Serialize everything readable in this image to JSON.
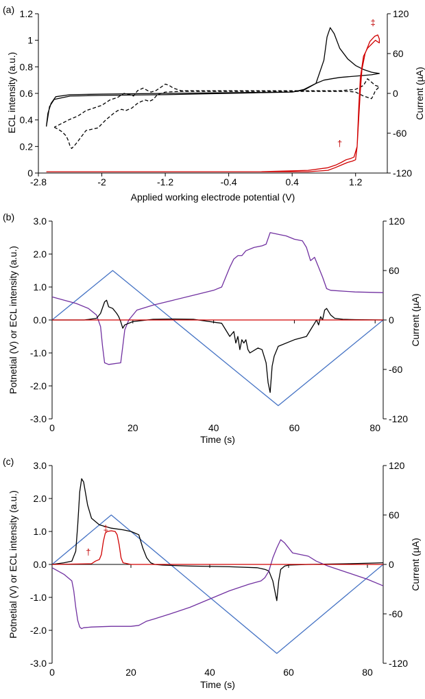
{
  "chart_data": [
    {
      "type": "line",
      "panel_label": "(a)",
      "xlabel": "Applied working electrode potential (V)",
      "ylabel": "ECL intensity (a.u.)",
      "y2label": "Current (µA)",
      "xlim": [
        -2.8,
        1.6
      ],
      "ylim": [
        0,
        1.2
      ],
      "y2lim": [
        -120,
        120
      ],
      "xticks": [
        -2.8,
        -2.0,
        -1.2,
        -0.4,
        0.4,
        1.2
      ],
      "xtick_labels": [
        "-2.8",
        "-2",
        "-1.2",
        "-0.4",
        "0.4",
        "1.2"
      ],
      "yticks": [
        0,
        0.2,
        0.4,
        0.6,
        0.8,
        1.0,
        1.2
      ],
      "ytick_labels": [
        "0",
        "0.2",
        "0.4",
        "0.6",
        "0.8",
        "1",
        "1.2"
      ],
      "y2ticks": [
        -120,
        -60,
        0,
        60,
        120
      ],
      "y2tick_labels": [
        "-120",
        "-60",
        "0",
        "60",
        "120"
      ],
      "annotations": [
        {
          "text": "†",
          "x": 1.0,
          "y": 0.2,
          "color": "#c00000"
        },
        {
          "text": "‡",
          "x": 1.42,
          "y": 1.11,
          "color": "#c00000"
        }
      ],
      "series": [
        {
          "axis": "y2",
          "color": "#000000",
          "dash": "solid",
          "x": [
            -2.7,
            -2.68,
            -2.64,
            -2.58,
            -2.4,
            -2.0,
            -1.2,
            -0.4,
            0.4,
            0.55,
            0.7,
            0.8,
            0.84,
            0.88,
            0.93,
            1.0,
            1.1,
            1.2,
            1.3,
            1.4,
            1.5,
            1.5,
            1.4,
            1.3,
            1.2,
            1.1,
            1.0,
            0.9,
            0.8,
            0.7,
            0.55,
            0.4,
            -0.4,
            -1.2,
            -2.0,
            -2.4,
            -2.6,
            -2.66,
            -2.7
          ],
          "y": [
            -50,
            -30,
            -15,
            -5,
            -2,
            -1,
            0,
            1,
            2,
            5,
            15,
            50,
            85,
            99,
            90,
            68,
            52,
            42,
            36,
            32,
            30,
            30,
            28,
            27,
            26,
            25,
            24,
            22,
            20,
            15,
            6,
            2,
            0,
            -2,
            -3,
            -4,
            -9,
            -20,
            -50
          ]
        },
        {
          "axis": "y2",
          "color": "#000000",
          "dash": "dashed",
          "x": [
            -2.6,
            -2.55,
            -2.5,
            -2.45,
            -2.42,
            -2.4,
            -2.38,
            -2.34,
            -2.3,
            -2.2,
            -2.05,
            -1.95,
            -1.85,
            -1.8,
            -1.75,
            -1.7,
            -1.62,
            -1.55,
            -1.5,
            -1.45,
            -1.4,
            -1.35,
            -1.3,
            -1.2,
            -1.0,
            -0.5,
            0.0,
            0.5,
            1.0,
            1.1,
            1.2,
            1.25,
            1.3,
            1.35,
            1.4,
            1.42,
            1.45,
            1.5,
            1.5,
            1.45,
            1.4,
            1.35,
            1.3,
            1.2,
            1.0,
            0.5,
            0.0,
            -0.5,
            -1.0,
            -1.1,
            -1.15,
            -1.2,
            -1.27,
            -1.32,
            -1.38,
            -1.42,
            -1.48,
            -1.55,
            -1.6,
            -1.65,
            -1.72,
            -1.8,
            -1.9,
            -2.0,
            -2.05,
            -2.1,
            -2.2,
            -2.3,
            -2.38,
            -2.42,
            -2.45,
            -2.5,
            -2.55,
            -2.6
          ],
          "y": [
            -51,
            -54,
            -58,
            -64,
            -72,
            -80,
            -83,
            -78,
            -72,
            -56,
            -52,
            -40,
            -30,
            -26,
            -24,
            -26,
            -22,
            -15,
            -12,
            -10,
            -12,
            -9,
            -2,
            2,
            3,
            3,
            3,
            3,
            3,
            3,
            2,
            -1,
            -4,
            -6,
            -8,
            -4,
            4,
            10,
            10,
            12,
            17,
            22,
            12,
            6,
            4,
            4,
            4,
            4,
            4,
            8,
            12,
            14,
            8,
            4,
            2,
            4,
            8,
            4,
            -4,
            -2,
            0,
            -6,
            -10,
            -18,
            -20,
            -22,
            -26,
            -34,
            -38,
            -40,
            -42,
            -45,
            -48,
            -51
          ]
        },
        {
          "axis": "y",
          "color": "#d00000",
          "dash": "solid",
          "x": [
            -2.7,
            -1.0,
            0.0,
            0.6,
            0.85,
            0.95,
            1.02,
            1.08,
            1.14,
            1.18,
            1.22,
            1.24,
            1.26,
            1.28,
            1.32,
            1.38,
            1.44,
            1.48,
            1.5,
            1.5,
            1.45,
            1.4,
            1.35,
            1.3,
            1.26,
            1.24,
            1.22,
            1.2,
            1.16,
            1.1,
            1.02,
            0.94,
            0.85,
            0.6,
            0.0
          ],
          "y": [
            0.01,
            0.01,
            0.01,
            0.02,
            0.04,
            0.06,
            0.08,
            0.1,
            0.11,
            0.12,
            0.2,
            0.42,
            0.62,
            0.78,
            0.9,
            0.99,
            1.03,
            1.04,
            1.01,
            0.98,
            1.0,
            0.97,
            0.94,
            0.88,
            0.72,
            0.5,
            0.2,
            0.1,
            0.09,
            0.08,
            0.06,
            0.04,
            0.02,
            0.01,
            0.01
          ]
        }
      ]
    },
    {
      "type": "line",
      "panel_label": "(b)",
      "xlabel": "Time (s)",
      "ylabel": "Potnetial (V) or ECL intensity (a.u.)",
      "y2label": "Current (µA)",
      "xlim": [
        0,
        82
      ],
      "ylim": [
        -3,
        3
      ],
      "y2lim": [
        -120,
        120
      ],
      "xticks": [
        0,
        20,
        40,
        60,
        80
      ],
      "xtick_labels": [
        "0",
        "20",
        "40",
        "60",
        "80"
      ],
      "yticks": [
        -3,
        -2,
        -1,
        0,
        1,
        2,
        3
      ],
      "ytick_labels": [
        "-3.0",
        "-2.0",
        "-1.0",
        "0.0",
        "1.0",
        "2.0",
        "3.0"
      ],
      "y2ticks": [
        -120,
        -60,
        0,
        60,
        120
      ],
      "y2tick_labels": [
        "-120",
        "-60",
        "0",
        "60",
        "120"
      ],
      "annotations": [],
      "series": [
        {
          "axis": "y",
          "color": "#4472c4",
          "dash": "solid",
          "x": [
            0,
            15,
            56,
            82
          ],
          "y": [
            0,
            1.5,
            -2.6,
            0
          ]
        },
        {
          "axis": "y",
          "color": "#7030a0",
          "dash": "solid",
          "x": [
            0,
            3,
            6,
            9,
            11,
            12,
            12.5,
            13,
            14,
            17,
            17.5,
            18,
            19,
            21,
            25,
            30,
            35,
            40,
            42,
            43,
            44,
            45,
            46,
            47,
            48,
            50,
            52,
            53,
            54,
            56,
            58,
            60,
            62,
            63,
            64,
            65,
            66,
            67,
            68,
            69,
            75,
            82
          ],
          "y": [
            0.7,
            0.6,
            0.5,
            0.35,
            0.15,
            -0.2,
            -0.8,
            -1.3,
            -1.35,
            -1.3,
            -0.8,
            -0.3,
            0.0,
            0.3,
            0.45,
            0.6,
            0.75,
            0.9,
            1.0,
            1.3,
            1.6,
            1.85,
            1.95,
            1.95,
            2.1,
            2.2,
            2.25,
            2.3,
            2.65,
            2.6,
            2.55,
            2.45,
            2.4,
            2.2,
            1.8,
            1.9,
            1.6,
            1.3,
            0.95,
            0.9,
            0.85,
            0.83
          ]
        },
        {
          "axis": "y",
          "color": "#000000",
          "dash": "solid",
          "x": [
            0,
            8,
            11,
            12,
            13,
            13.5,
            14,
            15,
            16,
            16.5,
            17,
            17.5,
            18,
            20,
            25,
            30,
            35,
            42,
            43,
            44,
            45,
            45.5,
            46,
            46.5,
            47,
            47.5,
            48,
            48.5,
            49,
            51,
            52,
            53,
            53.5,
            54,
            54.5,
            55,
            56,
            60,
            63,
            64,
            65,
            65.5,
            66,
            66.5,
            67,
            67.5,
            68,
            69,
            70,
            72,
            75,
            82
          ],
          "y": [
            0,
            0,
            0.05,
            0.2,
            0.55,
            0.6,
            0.4,
            0.35,
            0.2,
            0.1,
            -0.05,
            -0.25,
            -0.15,
            -0.05,
            0.02,
            0.03,
            0.02,
            -0.1,
            -0.3,
            -0.5,
            -0.35,
            -0.7,
            -0.5,
            -0.9,
            -0.6,
            -0.7,
            -0.6,
            -0.9,
            -1.0,
            -0.85,
            -0.9,
            -1.3,
            -1.9,
            -2.2,
            -1.4,
            -1.1,
            -0.8,
            -0.6,
            -0.5,
            -0.3,
            -0.1,
            0.0,
            -0.15,
            0.1,
            0.0,
            0.3,
            0.35,
            0.15,
            0.05,
            0.02,
            0.01,
            0
          ]
        },
        {
          "axis": "y",
          "color": "#d00000",
          "dash": "solid",
          "x": [
            0,
            82
          ],
          "y": [
            0,
            0
          ]
        }
      ]
    },
    {
      "type": "line",
      "panel_label": "(c)",
      "xlabel": "Time (s)",
      "ylabel": "Potnetial (V) or ECL intensity (a.u.)",
      "y2label": "Current (µA)",
      "xlim": [
        0,
        84
      ],
      "ylim": [
        -3,
        3
      ],
      "y2lim": [
        -120,
        120
      ],
      "xticks": [
        0,
        20,
        40,
        60,
        80
      ],
      "xtick_labels": [
        "0",
        "20",
        "40",
        "60",
        "80"
      ],
      "yticks": [
        -3,
        -2,
        -1,
        0,
        1,
        2,
        3
      ],
      "ytick_labels": [
        "-3.0",
        "-2.0",
        "-1.0",
        "0.0",
        "1.0",
        "2.0",
        "3.0"
      ],
      "y2ticks": [
        -120,
        -60,
        0,
        60,
        120
      ],
      "y2tick_labels": [
        "-120",
        "-60",
        "0",
        "60",
        "120"
      ],
      "annotations": [
        {
          "text": "†",
          "x": 9.2,
          "y": 0.28,
          "color": "#c00000"
        },
        {
          "text": "‡",
          "x": 13.6,
          "y": 1.0,
          "color": "#c00000"
        }
      ],
      "series": [
        {
          "axis": "y",
          "color": "#4472c4",
          "dash": "solid",
          "x": [
            0,
            15,
            57,
            84
          ],
          "y": [
            0,
            1.5,
            -2.7,
            0
          ]
        },
        {
          "axis": "y",
          "color": "#000000",
          "dash": "solid",
          "x": [
            0,
            3,
            5,
            6,
            6.5,
            7,
            7.5,
            8,
            9,
            10,
            12,
            15,
            18,
            20,
            21,
            22,
            23,
            24,
            25,
            26,
            28,
            35,
            45,
            52,
            54,
            55,
            55.5,
            56,
            56.5,
            57,
            57.5,
            58,
            59,
            60,
            65,
            75,
            84
          ],
          "y": [
            0,
            0.05,
            0.1,
            0.4,
            1.2,
            2.2,
            2.6,
            2.5,
            1.8,
            1.4,
            1.2,
            1.1,
            1.05,
            1.0,
            0.95,
            0.9,
            0.5,
            0.2,
            0.05,
            0.0,
            -0.02,
            -0.05,
            -0.07,
            -0.1,
            -0.15,
            -0.2,
            -0.35,
            -0.5,
            -0.8,
            -1.1,
            -0.5,
            -0.15,
            -0.05,
            -0.02,
            0,
            0.02,
            0.05
          ]
        },
        {
          "axis": "y",
          "color": "#7030a0",
          "dash": "solid",
          "x": [
            0,
            3,
            5,
            5.5,
            6,
            6.5,
            7,
            7.5,
            8,
            10,
            15,
            20,
            22,
            24,
            26,
            30,
            35,
            40,
            45,
            50,
            53,
            54,
            55,
            56,
            57,
            58,
            59,
            61,
            63,
            65,
            67,
            70,
            75,
            80,
            84
          ],
          "y": [
            -0.1,
            -0.3,
            -0.5,
            -0.8,
            -1.3,
            -1.7,
            -1.9,
            -1.95,
            -1.92,
            -1.9,
            -1.88,
            -1.88,
            -1.85,
            -1.72,
            -1.65,
            -1.5,
            -1.3,
            -1.05,
            -0.8,
            -0.6,
            -0.5,
            -0.4,
            -0.2,
            0.2,
            0.5,
            0.75,
            0.65,
            0.35,
            0.3,
            0.25,
            0.1,
            -0.05,
            -0.25,
            -0.45,
            -0.65
          ]
        },
        {
          "axis": "y",
          "color": "#d00000",
          "dash": "solid",
          "x": [
            0,
            10,
            11,
            12,
            12.5,
            13,
            13.5,
            14,
            15,
            16,
            16.5,
            17,
            17.5,
            18,
            20,
            84
          ],
          "y": [
            0,
            0.02,
            0.1,
            0.15,
            0.3,
            0.7,
            0.95,
            1.0,
            1.02,
            1.0,
            0.9,
            0.6,
            0.2,
            0.05,
            0.0,
            0.0
          ]
        }
      ]
    }
  ]
}
